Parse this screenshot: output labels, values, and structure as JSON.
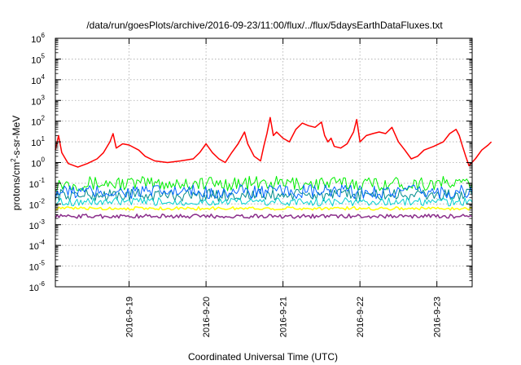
{
  "chart_data": {
    "type": "line",
    "title": "/data/run/goesPlots/archive/2016-09-23/11:00/flux/../flux/5daysEarthDataFluxes.txt",
    "xlabel": "Coordinated Universal Time (UTC)",
    "ylabel": "protons/cm2-s-sr-MeV",
    "ylabel_parts": {
      "pre": "protons/cm",
      "sup": "2",
      "post": "-s-sr-MeV"
    },
    "yscale": "log",
    "ylim_exponent": [
      -6,
      6
    ],
    "y_ticks": [
      {
        "base": "10",
        "exp": "-6",
        "v": -6
      },
      {
        "base": "10",
        "exp": "-5",
        "v": -5
      },
      {
        "base": "10",
        "exp": "-4",
        "v": -4
      },
      {
        "base": "10",
        "exp": "-3",
        "v": -3
      },
      {
        "base": "10",
        "exp": "-2",
        "v": -2
      },
      {
        "base": "10",
        "exp": "-1",
        "v": -1
      },
      {
        "base": "10",
        "exp": "0",
        "v": 0
      },
      {
        "base": "10",
        "exp": "1",
        "v": 1
      },
      {
        "base": "10",
        "exp": "2",
        "v": 2
      },
      {
        "base": "10",
        "exp": "3",
        "v": 3
      },
      {
        "base": "10",
        "exp": "4",
        "v": 4
      },
      {
        "base": "10",
        "exp": "5",
        "v": 5
      },
      {
        "base": "10",
        "exp": "6",
        "v": 6
      }
    ],
    "xlim": [
      "2016-09-18T01:00",
      "2016-09-23T11:00"
    ],
    "x_ticks": [
      {
        "label": "2016-9-19",
        "t": "2016-09-19T00:00"
      },
      {
        "label": "2016-9-20",
        "t": "2016-09-20T00:00"
      },
      {
        "label": "2016-9-21",
        "t": "2016-09-21T00:00"
      },
      {
        "label": "2016-9-22",
        "t": "2016-09-22T00:00"
      },
      {
        "label": "2016-9-23",
        "t": "2016-09-23T00:00"
      }
    ],
    "grid": true,
    "legend": "none",
    "series": [
      {
        "color": "#ff0000",
        "width": 1.5,
        "points": [
          [
            "2016-09-18T01:00",
            4
          ],
          [
            "2016-09-18T02:00",
            20
          ],
          [
            "2016-09-18T03:00",
            3
          ],
          [
            "2016-09-18T05:00",
            0.9
          ],
          [
            "2016-09-18T08:00",
            0.6
          ],
          [
            "2016-09-18T11:00",
            0.9
          ],
          [
            "2016-09-18T14:00",
            1.5
          ],
          [
            "2016-09-18T16:00",
            3
          ],
          [
            "2016-09-18T18:00",
            10
          ],
          [
            "2016-09-18T19:00",
            25
          ],
          [
            "2016-09-18T20:00",
            5
          ],
          [
            "2016-09-18T22:00",
            8
          ],
          [
            "2016-09-19T00:00",
            7
          ],
          [
            "2016-09-19T03:00",
            4
          ],
          [
            "2016-09-19T05:00",
            2
          ],
          [
            "2016-09-19T08:00",
            1.2
          ],
          [
            "2016-09-19T12:00",
            1
          ],
          [
            "2016-09-19T16:00",
            1.2
          ],
          [
            "2016-09-19T20:00",
            1.5
          ],
          [
            "2016-09-19T22:00",
            3
          ],
          [
            "2016-09-20T00:00",
            8
          ],
          [
            "2016-09-20T02:00",
            3
          ],
          [
            "2016-09-20T04:00",
            1.5
          ],
          [
            "2016-09-20T06:00",
            1
          ],
          [
            "2016-09-20T08:00",
            3
          ],
          [
            "2016-09-20T10:00",
            8
          ],
          [
            "2016-09-20T12:00",
            30
          ],
          [
            "2016-09-20T13:00",
            8
          ],
          [
            "2016-09-20T15:00",
            2
          ],
          [
            "2016-09-20T17:00",
            1.2
          ],
          [
            "2016-09-20T18:00",
            6
          ],
          [
            "2016-09-20T19:00",
            25
          ],
          [
            "2016-09-20T20:00",
            150
          ],
          [
            "2016-09-20T21:00",
            20
          ],
          [
            "2016-09-20T22:00",
            30
          ],
          [
            "2016-09-21T00:00",
            15
          ],
          [
            "2016-09-21T02:00",
            10
          ],
          [
            "2016-09-21T04:00",
            40
          ],
          [
            "2016-09-21T06:00",
            80
          ],
          [
            "2016-09-21T08:00",
            60
          ],
          [
            "2016-09-21T10:00",
            50
          ],
          [
            "2016-09-21T12:00",
            90
          ],
          [
            "2016-09-21T13:00",
            20
          ],
          [
            "2016-09-21T14:00",
            10
          ],
          [
            "2016-09-21T15:00",
            15
          ],
          [
            "2016-09-21T16:00",
            6
          ],
          [
            "2016-09-21T18:00",
            5
          ],
          [
            "2016-09-21T20:00",
            8
          ],
          [
            "2016-09-21T22:00",
            30
          ],
          [
            "2016-09-21T23:00",
            120
          ],
          [
            "2016-09-22T00:00",
            10
          ],
          [
            "2016-09-22T02:00",
            20
          ],
          [
            "2016-09-22T04:00",
            25
          ],
          [
            "2016-09-22T06:00",
            30
          ],
          [
            "2016-09-22T08:00",
            25
          ],
          [
            "2016-09-22T10:00",
            50
          ],
          [
            "2016-09-22T12:00",
            10
          ],
          [
            "2016-09-22T14:00",
            4
          ],
          [
            "2016-09-22T16:00",
            1.5
          ],
          [
            "2016-09-22T18:00",
            2
          ],
          [
            "2016-09-22T20:00",
            4
          ],
          [
            "2016-09-22T23:00",
            6
          ],
          [
            "2016-09-23T02:00",
            10
          ],
          [
            "2016-09-23T04:00",
            25
          ],
          [
            "2016-09-23T06:00",
            40
          ],
          [
            "2016-09-23T07:00",
            20
          ],
          [
            "2016-09-23T08:00",
            6
          ],
          [
            "2016-09-23T09:00",
            2
          ],
          [
            "2016-09-23T10:00",
            0.7
          ],
          [
            "2016-09-23T12:00",
            1.5
          ],
          [
            "2016-09-23T14:00",
            4
          ],
          [
            "2016-09-23T16:00",
            7
          ],
          [
            "2016-09-23T17:00",
            10
          ]
        ]
      },
      {
        "color": "#00ee00",
        "width": 1,
        "approx_level": 0.09,
        "approx_spread": 0.35
      },
      {
        "color": "#008b8b",
        "width": 1,
        "approx_level": 0.025,
        "approx_spread": 0.3
      },
      {
        "color": "#0066ff",
        "width": 1,
        "approx_level": 0.035,
        "approx_spread": 0.35
      },
      {
        "color": "#00d0d0",
        "width": 1,
        "approx_level": 0.012,
        "approx_spread": 0.2
      },
      {
        "color": "#ffff00",
        "width": 1.5,
        "approx_level": 0.006,
        "approx_spread": 0.08
      },
      {
        "color": "#8b2e8b",
        "width": 1.5,
        "approx_level": 0.0025,
        "approx_spread": 0.1
      }
    ]
  }
}
